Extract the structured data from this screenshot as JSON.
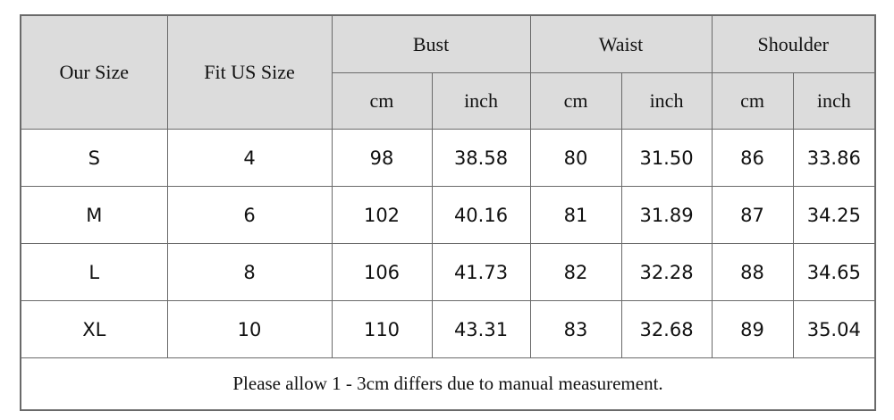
{
  "table": {
    "header": {
      "our_size": "Our Size",
      "fit_us_size": "Fit US Size",
      "groups": [
        "Bust",
        "Waist",
        "Shoulder"
      ],
      "units": [
        "cm",
        "inch",
        "cm",
        "inch",
        "cm",
        "inch"
      ]
    },
    "rows": [
      [
        "S",
        "4",
        "98",
        "38.58",
        "80",
        "31.50",
        "86",
        "33.86"
      ],
      [
        "M",
        "6",
        "102",
        "40.16",
        "81",
        "31.89",
        "87",
        "34.25"
      ],
      [
        "L",
        "8",
        "106",
        "41.73",
        "82",
        "32.28",
        "88",
        "34.65"
      ],
      [
        "XL",
        "10",
        "110",
        "43.31",
        "83",
        "32.68",
        "89",
        "35.04"
      ]
    ],
    "note": "Please allow 1 - 3cm differs due to manual measurement."
  }
}
